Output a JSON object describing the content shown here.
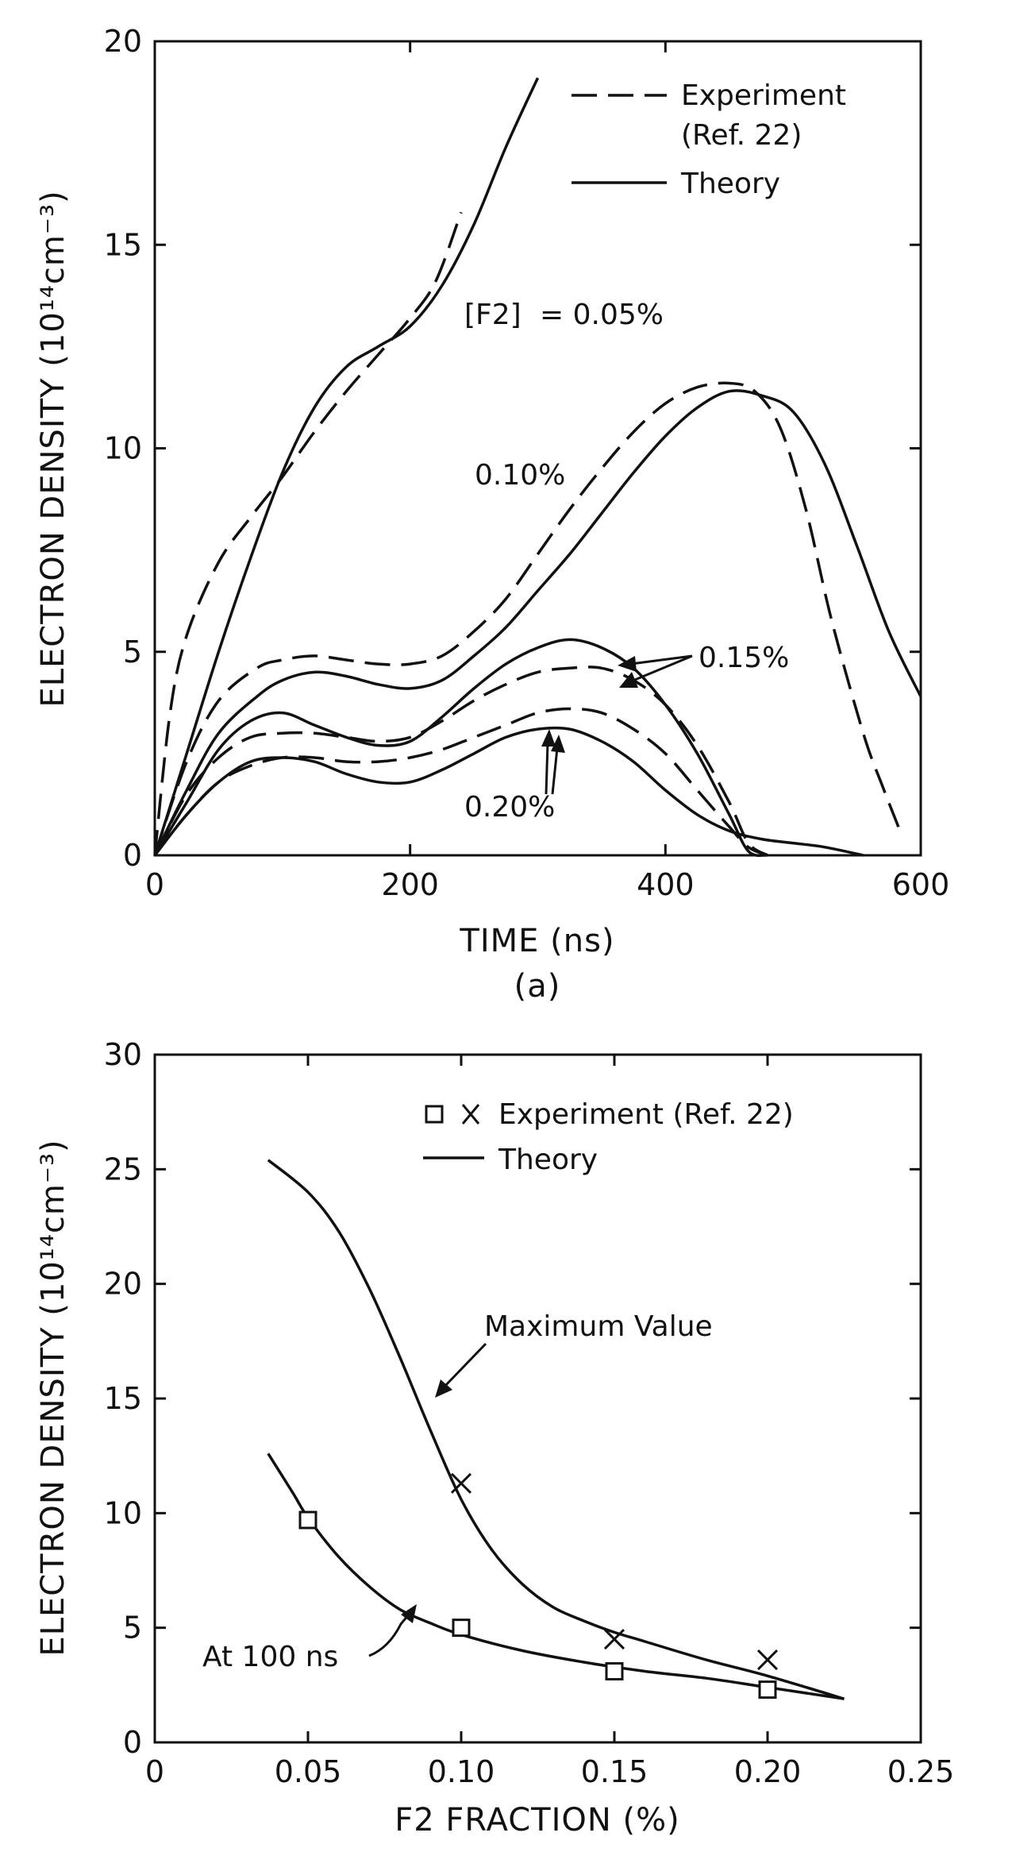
{
  "chart_data": [
    {
      "type": "line",
      "panel_label": "(a)",
      "xlabel": "TIME (ns)",
      "ylabel": "ELECTRON DENSITY (10¹⁴cm⁻³)",
      "xlim": [
        0,
        600
      ],
      "ylim": [
        0,
        20
      ],
      "xticks": [
        "0",
        "200",
        "400",
        "600"
      ],
      "yticks": [
        "0",
        "5",
        "10",
        "15",
        "20"
      ],
      "legend": {
        "experiment_label": "Experiment",
        "experiment_ref": "(Ref. 22)",
        "theory_label": "Theory"
      },
      "annotations": {
        "f2_prefix": "[F2]",
        "f2_value": "= 0.05%",
        "p010": "0.10%",
        "p015": "0.15%",
        "p020": "0.20%"
      },
      "series": [
        {
          "name": "0.05% Theory",
          "style": "theory",
          "x": [
            0,
            25,
            50,
            75,
            100,
            125,
            150,
            175,
            200,
            225,
            250,
            275,
            300
          ],
          "y": [
            0,
            2.5,
            5,
            7.3,
            9.4,
            11.0,
            12.0,
            12.5,
            13.0,
            14.0,
            15.5,
            17.4,
            19.1
          ]
        },
        {
          "name": "0.05% Experiment",
          "style": "experiment",
          "x": [
            0,
            12,
            25,
            50,
            75,
            100,
            125,
            150,
            175,
            200,
            220,
            240
          ],
          "y": [
            0,
            3.5,
            5.4,
            7.2,
            8.3,
            9.3,
            10.4,
            11.4,
            12.3,
            13.2,
            14.1,
            15.8
          ]
        },
        {
          "name": "0.10% Theory",
          "style": "theory",
          "x": [
            0,
            25,
            50,
            80,
            100,
            125,
            150,
            175,
            200,
            225,
            250,
            275,
            300,
            325,
            350,
            375,
            400,
            425,
            450,
            475,
            500,
            525,
            550,
            575,
            600
          ],
          "y": [
            0,
            1.6,
            3.0,
            3.9,
            4.3,
            4.5,
            4.4,
            4.2,
            4.1,
            4.3,
            4.9,
            5.6,
            6.5,
            7.4,
            8.4,
            9.4,
            10.3,
            11.0,
            11.4,
            11.3,
            10.9,
            9.6,
            7.6,
            5.5,
            3.9
          ]
        },
        {
          "name": "0.10% Experiment",
          "style": "experiment",
          "x": [
            0,
            25,
            50,
            80,
            100,
            125,
            150,
            175,
            200,
            225,
            250,
            275,
            300,
            325,
            350,
            375,
            400,
            425,
            450,
            470,
            490,
            510,
            530,
            555,
            570,
            585
          ],
          "y": [
            0,
            2.3,
            3.8,
            4.6,
            4.8,
            4.9,
            4.8,
            4.7,
            4.7,
            4.9,
            5.5,
            6.3,
            7.4,
            8.5,
            9.5,
            10.4,
            11.1,
            11.5,
            11.6,
            11.4,
            10.5,
            8.5,
            5.8,
            3.0,
            1.7,
            0.5
          ]
        },
        {
          "name": "0.15% Theory",
          "style": "theory",
          "x": [
            0,
            25,
            50,
            75,
            100,
            125,
            150,
            175,
            200,
            225,
            250,
            275,
            300,
            325,
            350,
            375,
            400,
            425,
            450,
            465,
            480
          ],
          "y": [
            0,
            1.3,
            2.6,
            3.3,
            3.5,
            3.2,
            2.9,
            2.7,
            2.8,
            3.4,
            4.1,
            4.7,
            5.1,
            5.3,
            5.1,
            4.6,
            3.7,
            2.5,
            1.0,
            0.1,
            0
          ]
        },
        {
          "name": "0.15% Experiment",
          "style": "experiment",
          "x": [
            0,
            25,
            50,
            75,
            100,
            125,
            150,
            175,
            200,
            225,
            250,
            275,
            300,
            325,
            350,
            375,
            400,
            425,
            450,
            465,
            480
          ],
          "y": [
            0,
            1.5,
            2.4,
            2.9,
            3.0,
            3.0,
            2.9,
            2.8,
            2.9,
            3.3,
            3.8,
            4.2,
            4.5,
            4.6,
            4.6,
            4.3,
            3.7,
            2.7,
            1.3,
            0.3,
            0
          ]
        },
        {
          "name": "0.20% Theory",
          "style": "theory",
          "x": [
            0,
            25,
            50,
            75,
            100,
            125,
            150,
            175,
            200,
            225,
            250,
            275,
            300,
            325,
            350,
            375,
            400,
            425,
            450,
            475,
            500,
            525,
            555
          ],
          "y": [
            0,
            1.0,
            1.8,
            2.3,
            2.4,
            2.3,
            2.0,
            1.8,
            1.8,
            2.1,
            2.5,
            2.9,
            3.1,
            3.1,
            2.8,
            2.3,
            1.6,
            1.0,
            0.6,
            0.4,
            0.3,
            0.2,
            0
          ]
        },
        {
          "name": "0.20% Experiment",
          "style": "experiment",
          "x": [
            0,
            25,
            50,
            75,
            100,
            125,
            150,
            175,
            200,
            225,
            250,
            275,
            300,
            325,
            350,
            375,
            400,
            425,
            450,
            465,
            480
          ],
          "y": [
            0,
            1.0,
            1.8,
            2.2,
            2.4,
            2.4,
            2.3,
            2.3,
            2.4,
            2.6,
            2.9,
            3.2,
            3.5,
            3.6,
            3.5,
            3.1,
            2.5,
            1.6,
            0.7,
            0.2,
            0
          ]
        }
      ]
    },
    {
      "type": "line",
      "panel_label": "(b)",
      "xlabel": "F2 FRACTION (%)",
      "ylabel": "ELECTRON DENSITY (10¹⁴cm⁻³)",
      "xlim": [
        0,
        0.25
      ],
      "ylim": [
        0,
        30
      ],
      "xticks": [
        "0",
        "0.05",
        "0.10",
        "0.15",
        "0.20",
        "0.25"
      ],
      "yticks": [
        "0",
        "5",
        "10",
        "15",
        "20",
        "25",
        "30"
      ],
      "legend": {
        "experiment_label": "Experiment (Ref. 22)",
        "theory_label": "Theory"
      },
      "annotations": {
        "max_value": "Maximum Value",
        "at_100": "At 100 ns"
      },
      "series": [
        {
          "name": "Maximum Value (Theory)",
          "style": "theory",
          "x": [
            0.037,
            0.05,
            0.06,
            0.07,
            0.08,
            0.09,
            0.1,
            0.11,
            0.12,
            0.13,
            0.14,
            0.15,
            0.16,
            0.18,
            0.2,
            0.225
          ],
          "y": [
            25.4,
            24.0,
            22.3,
            19.8,
            16.8,
            13.6,
            10.6,
            8.4,
            6.9,
            5.9,
            5.3,
            4.8,
            4.4,
            3.6,
            2.9,
            1.9
          ]
        },
        {
          "name": "At 100 ns (Theory)",
          "style": "theory",
          "x": [
            0.037,
            0.045,
            0.05,
            0.06,
            0.07,
            0.08,
            0.09,
            0.1,
            0.12,
            0.14,
            0.16,
            0.18,
            0.2,
            0.225
          ],
          "y": [
            12.6,
            10.9,
            9.8,
            8.1,
            6.8,
            5.8,
            5.2,
            4.7,
            4.0,
            3.5,
            3.1,
            2.8,
            2.4,
            1.9
          ]
        },
        {
          "name": "Experiment at 100 ns",
          "style": "square",
          "x": [
            0.05,
            0.1,
            0.15,
            0.2
          ],
          "y": [
            9.7,
            5.0,
            3.1,
            2.3
          ]
        },
        {
          "name": "Experiment maximum",
          "style": "cross",
          "x": [
            0.1,
            0.15,
            0.2
          ],
          "y": [
            11.3,
            4.5,
            3.6
          ]
        }
      ]
    }
  ]
}
